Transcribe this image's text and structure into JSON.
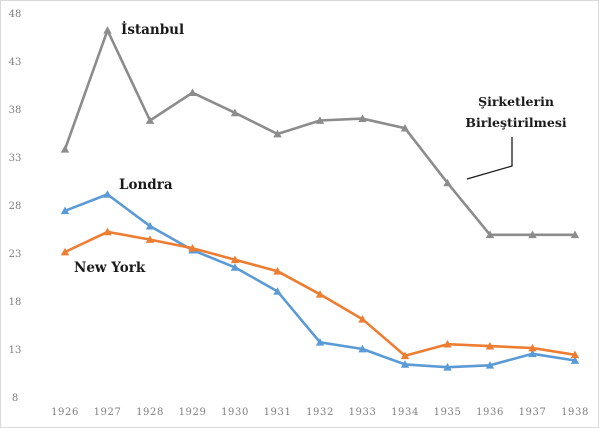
{
  "chart_data": {
    "type": "line",
    "title": "",
    "xlabel": "",
    "ylabel": "",
    "categories": [
      "1926",
      "1927",
      "1928",
      "1929",
      "1930",
      "1931",
      "1932",
      "1933",
      "1934",
      "1935",
      "1936",
      "1937",
      "1938"
    ],
    "ylim": [
      8,
      48
    ],
    "yticks": [
      8,
      13,
      18,
      23,
      28,
      33,
      38,
      43,
      48
    ],
    "grid": false,
    "legend": "none",
    "series": [
      {
        "name": "İstanbul",
        "color": "#8c8c8c",
        "marker": "triangle",
        "values": [
          33.8,
          46.2,
          36.8,
          39.7,
          37.6,
          35.4,
          36.8,
          37.0,
          36.0,
          30.3,
          24.9,
          24.9,
          24.9
        ]
      },
      {
        "name": "Londra",
        "color": "#5b9bd5",
        "marker": "triangle",
        "values": [
          27.4,
          29.1,
          25.8,
          23.3,
          21.5,
          19.0,
          13.7,
          13.0,
          11.4,
          11.1,
          11.3,
          12.5,
          11.8
        ]
      },
      {
        "name": "New York",
        "color": "#ed7d31",
        "marker": "triangle",
        "values": [
          23.1,
          25.2,
          24.4,
          23.5,
          22.3,
          21.1,
          18.7,
          16.1,
          12.3,
          13.5,
          13.3,
          13.1,
          12.4
        ]
      }
    ],
    "annotations": [
      {
        "text_lines": [
          "Şirketlerin",
          "Birleştirilmesi"
        ]
      }
    ]
  }
}
